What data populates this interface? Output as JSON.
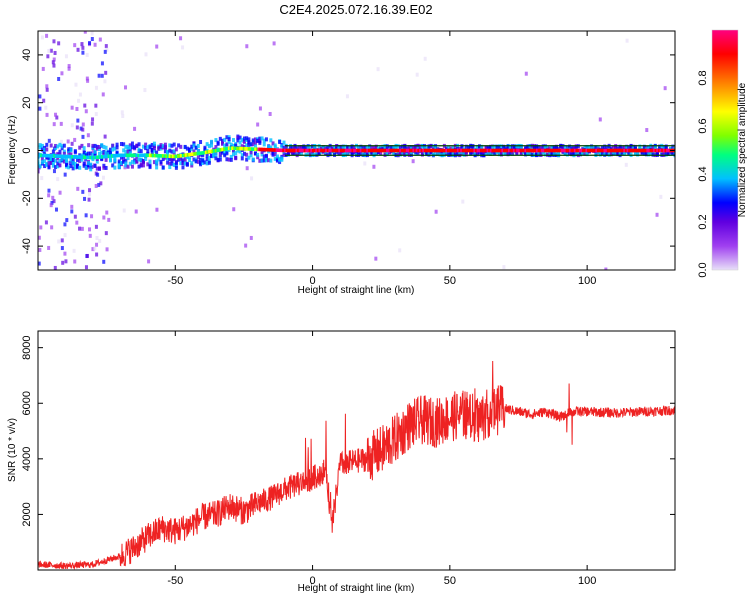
{
  "title": "C2E4.2025.072.16.39.E02",
  "chart_data": [
    {
      "type": "heatmap",
      "xlabel": "Height of straight line (km)",
      "ylabel": "Frequency (Hz)",
      "xlim": [
        -100,
        132
      ],
      "ylim": [
        -50,
        50
      ],
      "x_ticks": [
        -50,
        0,
        50,
        100
      ],
      "y_ticks": [
        -40,
        -20,
        0,
        20,
        40
      ],
      "colorbar": {
        "label": "Normalized spectral amplitude",
        "range": [
          0,
          1
        ],
        "ticks": [
          0.0,
          0.2,
          0.4,
          0.6,
          0.8
        ],
        "tick_labels": [
          "0.0",
          "0.2",
          "0.4",
          "0.6",
          "0.8"
        ],
        "colormap": [
          "#e8e0f8",
          "#a040f0",
          "#6000e0",
          "#0000ff",
          "#00c0ff",
          "#00ff80",
          "#80ff00",
          "#ffff00",
          "#ff8000",
          "#ff0000",
          "#ff0080"
        ]
      },
      "ridge": {
        "x": [
          -100,
          -90,
          -80,
          -70,
          -60,
          -50,
          -40,
          -30,
          -20,
          -10,
          0,
          10,
          20,
          40,
          60,
          80,
          100,
          132
        ],
        "y": [
          -2,
          -2.5,
          -3,
          -2,
          -2,
          -2.5,
          -1,
          1,
          0.5,
          0,
          0,
          0,
          0,
          0,
          0,
          0,
          0,
          0
        ]
      },
      "reference_lines_hz": [
        2,
        -2
      ]
    },
    {
      "type": "line",
      "xlabel": "Height of straight line (km)",
      "ylabel": "SNR (10 * v/v)",
      "xlim": [
        -100,
        132
      ],
      "ylim": [
        0,
        8600
      ],
      "x_ticks": [
        -50,
        0,
        50,
        100
      ],
      "y_ticks": [
        2000,
        4000,
        6000,
        8000
      ],
      "color": "#ee2222",
      "series": [
        {
          "x": [
            -100,
            -90,
            -80,
            -70,
            -65,
            -60,
            -55,
            -50,
            -45,
            -40,
            -35,
            -30,
            -25,
            -20,
            -15,
            -10,
            -5,
            0,
            5,
            7,
            10,
            15,
            20,
            25,
            30,
            35,
            40,
            45,
            50,
            55,
            60,
            65,
            70,
            75,
            80,
            85,
            90,
            95,
            100,
            110,
            120,
            132
          ],
          "values": [
            200,
            150,
            200,
            500,
            800,
            1200,
            1500,
            1400,
            1600,
            1900,
            2000,
            2300,
            2100,
            2400,
            2600,
            2900,
            3100,
            3300,
            3600,
            1500,
            3800,
            3900,
            4000,
            4300,
            4700,
            5200,
            5400,
            5300,
            5500,
            5600,
            5400,
            5700,
            5800,
            5700,
            5600,
            5700,
            5500,
            5700,
            5700,
            5650,
            5700,
            5750
          ]
        }
      ]
    }
  ]
}
